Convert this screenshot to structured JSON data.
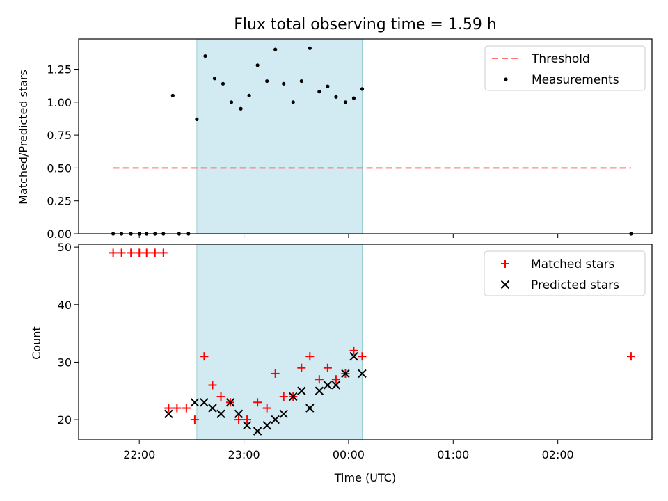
{
  "chart_data": [
    {
      "type": "scatter",
      "title": "Flux total observing time = 1.59 h",
      "ylabel": "Matched/Predicted stars",
      "xlabel": "",
      "x_unit": "hours (UTC, 22 = 22:00; values >24 are after midnight)",
      "ylim": [
        0,
        1.48
      ],
      "xlim": [
        21.42,
        26.9
      ],
      "yticks": [
        "0.00",
        "0.25",
        "0.50",
        "0.75",
        "1.00",
        "1.25"
      ],
      "ytick_values": [
        0,
        0.25,
        0.5,
        0.75,
        1.0,
        1.25
      ],
      "shaded_span": [
        22.55,
        24.13
      ],
      "threshold": {
        "y": 0.5,
        "x": [
          21.75,
          26.7
        ]
      },
      "legend": [
        "Threshold",
        "Measurements"
      ],
      "legend_position": "upper-right",
      "series": [
        {
          "name": "Measurements",
          "x": [
            21.75,
            21.83,
            21.92,
            22.0,
            22.07,
            22.15,
            22.23,
            22.32,
            22.38,
            22.47,
            22.55,
            22.63,
            22.72,
            22.8,
            22.88,
            22.97,
            23.05,
            23.13,
            23.22,
            23.3,
            23.38,
            23.47,
            23.55,
            23.63,
            23.72,
            23.8,
            23.88,
            23.97,
            24.05,
            24.13,
            26.7
          ],
          "y": [
            0,
            0,
            0,
            0,
            0,
            0,
            0,
            1.05,
            0,
            0,
            0.87,
            1.35,
            1.18,
            1.14,
            1.0,
            0.95,
            1.05,
            1.28,
            1.16,
            1.4,
            1.14,
            1.0,
            1.16,
            1.41,
            1.08,
            1.12,
            1.04,
            1.0,
            1.03,
            1.1,
            0
          ]
        }
      ],
      "colors": {
        "threshold": "#ff7070",
        "span": "#add8e6",
        "points": "#000000"
      }
    },
    {
      "type": "scatter",
      "title": "",
      "ylabel": "Count",
      "xlabel": "Time (UTC)",
      "ylim": [
        16.5,
        50.5
      ],
      "xlim": [
        21.42,
        26.9
      ],
      "yticks": [
        "20",
        "30",
        "40",
        "50"
      ],
      "ytick_values": [
        20,
        30,
        40,
        50
      ],
      "xticks": [
        "22:00",
        "23:00",
        "00:00",
        "01:00",
        "02:00"
      ],
      "xtick_values": [
        22,
        23,
        24,
        25,
        26
      ],
      "shaded_span": [
        22.55,
        24.13
      ],
      "legend": [
        "Matched stars",
        "Predicted stars"
      ],
      "legend_position": "upper-right",
      "series": [
        {
          "name": "Matched stars",
          "x": [
            21.75,
            21.83,
            21.92,
            22.0,
            22.07,
            22.15,
            22.23,
            22.28,
            22.36,
            22.45,
            22.53,
            22.62,
            22.7,
            22.78,
            22.87,
            22.95,
            23.03,
            23.13,
            23.22,
            23.3,
            23.38,
            23.47,
            23.55,
            23.63,
            23.72,
            23.8,
            23.88,
            23.97,
            24.05,
            24.13,
            26.7
          ],
          "y": [
            49,
            49,
            49,
            49,
            49,
            49,
            49,
            22,
            22,
            22,
            20,
            31,
            26,
            24,
            23,
            20,
            20,
            23,
            22,
            28,
            24,
            24,
            29,
            31,
            27,
            29,
            27,
            28,
            32,
            31,
            31
          ]
        },
        {
          "name": "Predicted stars",
          "x": [
            22.28,
            22.53,
            22.62,
            22.7,
            22.78,
            22.87,
            22.95,
            23.03,
            23.13,
            23.22,
            23.3,
            23.38,
            23.47,
            23.55,
            23.63,
            23.72,
            23.8,
            23.88,
            23.97,
            24.05,
            24.13
          ],
          "y": [
            21,
            23,
            23,
            22,
            21,
            23,
            21,
            19,
            18,
            19,
            20,
            21,
            24,
            25,
            22,
            25,
            26,
            26,
            28,
            31,
            28
          ]
        }
      ],
      "colors": {
        "matched": "#ff0000",
        "predicted": "#000000",
        "span": "#add8e6"
      }
    }
  ]
}
